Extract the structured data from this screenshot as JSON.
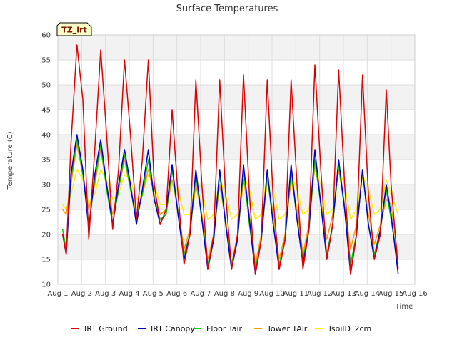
{
  "chart_data": {
    "type": "line",
    "title": "Surface Temperatures",
    "xlabel": "Time",
    "ylabel": "Temperature (C)",
    "annotation": "TZ_irt",
    "xlim": [
      1,
      16
    ],
    "ylim": [
      10,
      60
    ],
    "x_tick_labels": [
      "Aug 1",
      "Aug 2",
      "Aug 3",
      "Aug 4",
      "Aug 5",
      "Aug 6",
      "Aug 7",
      "Aug 8",
      "Aug 9",
      "Aug 10",
      "Aug 11",
      "Aug 12",
      "Aug 13",
      "Aug 14",
      "Aug 15",
      "Aug 16"
    ],
    "x_tick_values": [
      1,
      2,
      3,
      4,
      5,
      6,
      7,
      8,
      9,
      10,
      11,
      12,
      13,
      14,
      15,
      16
    ],
    "y_ticks": [
      10,
      15,
      20,
      25,
      30,
      35,
      40,
      45,
      50,
      55,
      60
    ],
    "grid": true,
    "legend_position": "bottom",
    "band_color": "#f2f2f2",
    "series": [
      {
        "name": "IRT Ground",
        "color": "#e00000",
        "x": [
          1.2,
          1.35,
          1.55,
          1.8,
          2.05,
          2.3,
          2.55,
          2.8,
          3.05,
          3.3,
          3.55,
          3.8,
          4.05,
          4.3,
          4.55,
          4.8,
          5.05,
          5.3,
          5.55,
          5.8,
          6.05,
          6.3,
          6.55,
          6.8,
          7.05,
          7.3,
          7.55,
          7.8,
          8.05,
          8.3,
          8.55,
          8.8,
          9.05,
          9.3,
          9.55,
          9.8,
          10.05,
          10.3,
          10.55,
          10.8,
          11.05,
          11.3,
          11.55,
          11.8,
          12.05,
          12.3,
          12.55,
          12.8,
          13.05,
          13.3,
          13.55,
          13.8,
          14.05,
          14.3,
          14.55,
          14.8,
          15.0,
          15.3
        ],
        "values": [
          20,
          16,
          38,
          58,
          47,
          19,
          37,
          57,
          40,
          21,
          33,
          55,
          40,
          23,
          35,
          55,
          30,
          22,
          25,
          45,
          28,
          14,
          20,
          51,
          30,
          13,
          20,
          51,
          28,
          13,
          20,
          52,
          28,
          12,
          19,
          51,
          27,
          13,
          19,
          51,
          30,
          13,
          21,
          54,
          33,
          15,
          22,
          53,
          30,
          12,
          20,
          52,
          28,
          15,
          20,
          49,
          30,
          13
        ]
      },
      {
        "name": "IRT Canopy",
        "color": "#0000cc",
        "x": [
          1.2,
          1.35,
          1.55,
          1.8,
          2.05,
          2.3,
          2.55,
          2.8,
          3.05,
          3.3,
          3.55,
          3.8,
          4.05,
          4.3,
          4.55,
          4.8,
          5.05,
          5.3,
          5.55,
          5.8,
          6.05,
          6.3,
          6.55,
          6.8,
          7.05,
          7.3,
          7.55,
          7.8,
          8.05,
          8.3,
          8.55,
          8.8,
          9.05,
          9.3,
          9.55,
          9.8,
          10.05,
          10.3,
          10.55,
          10.8,
          11.05,
          11.3,
          11.55,
          11.8,
          12.05,
          12.3,
          12.55,
          12.8,
          13.05,
          13.3,
          13.55,
          13.8,
          14.05,
          14.3,
          14.55,
          14.8,
          15.0,
          15.3
        ],
        "values": [
          20,
          16,
          32,
          40,
          33,
          21,
          32,
          39,
          30,
          22,
          30,
          37,
          30,
          22,
          29,
          37,
          27,
          22,
          25,
          34,
          24,
          15,
          20,
          33,
          23,
          13,
          19,
          33,
          22,
          13,
          19,
          34,
          23,
          12,
          19,
          33,
          22,
          13,
          19,
          34,
          23,
          14,
          21,
          37,
          26,
          15,
          22,
          35,
          25,
          12,
          20,
          33,
          22,
          15,
          21,
          30,
          24,
          12
        ]
      },
      {
        "name": "Floor Tair",
        "color": "#00cc00",
        "x": [
          1.2,
          1.35,
          1.55,
          1.8,
          2.05,
          2.3,
          2.55,
          2.8,
          3.05,
          3.3,
          3.55,
          3.8,
          4.05,
          4.3,
          4.55,
          4.8,
          5.05,
          5.3,
          5.55,
          5.8,
          6.05,
          6.3,
          6.55,
          6.8,
          7.05,
          7.3,
          7.55,
          7.8,
          8.05,
          8.3,
          8.55,
          8.8,
          9.05,
          9.3,
          9.55,
          9.8,
          10.05,
          10.3,
          10.55,
          10.8,
          11.05,
          11.3,
          11.55,
          11.8,
          12.05,
          12.3,
          12.55,
          12.8,
          13.05,
          13.3,
          13.55,
          13.8,
          14.05,
          14.3,
          14.55,
          14.8,
          15.0,
          15.3
        ],
        "values": [
          21,
          17,
          31,
          39,
          32,
          22,
          31,
          38,
          29,
          22,
          29,
          36,
          29,
          23,
          28,
          35,
          27,
          23,
          24,
          33,
          24,
          16,
          20,
          32,
          23,
          14,
          19,
          32,
          22,
          14,
          19,
          33,
          22,
          13,
          19,
          32,
          22,
          14,
          19,
          33,
          23,
          15,
          21,
          35,
          26,
          16,
          22,
          34,
          25,
          14,
          20,
          33,
          22,
          16,
          21,
          29,
          23,
          14
        ]
      },
      {
        "name": "Tower TAir",
        "color": "#ff9900",
        "x": [
          1.2,
          1.35,
          1.55,
          1.8,
          2.05,
          2.3,
          2.55,
          2.8,
          3.05,
          3.3,
          3.55,
          3.8,
          4.05,
          4.3,
          4.55,
          4.8,
          5.05,
          5.3,
          5.55,
          5.8,
          6.05,
          6.3,
          6.55,
          6.8,
          7.05,
          7.3,
          7.55,
          7.8,
          8.05,
          8.3,
          8.55,
          8.8,
          9.05,
          9.3,
          9.55,
          9.8,
          10.05,
          10.3,
          10.55,
          10.8,
          11.05,
          11.3,
          11.55,
          11.8,
          12.05,
          12.3,
          12.55,
          12.8,
          13.05,
          13.3,
          13.55,
          13.8,
          14.05,
          14.3,
          14.55,
          14.8,
          15.0,
          15.3
        ],
        "values": [
          25,
          24,
          30,
          38,
          32,
          25,
          30,
          37,
          30,
          24,
          29,
          35,
          29,
          24,
          28,
          33,
          28,
          24,
          25,
          31,
          25,
          17,
          21,
          30,
          24,
          15,
          20,
          30,
          23,
          14,
          20,
          31,
          24,
          14,
          20,
          31,
          24,
          15,
          20,
          31,
          25,
          16,
          22,
          34,
          27,
          19,
          24,
          33,
          26,
          17,
          22,
          32,
          24,
          18,
          22,
          27,
          26,
          15
        ]
      },
      {
        "name": "TsoilD_2cm",
        "color": "#ffee00",
        "x": [
          1.2,
          1.35,
          1.55,
          1.8,
          2.05,
          2.3,
          2.55,
          2.8,
          3.05,
          3.3,
          3.55,
          3.8,
          4.05,
          4.3,
          4.55,
          4.8,
          5.05,
          5.3,
          5.55,
          5.8,
          6.05,
          6.3,
          6.55,
          6.8,
          7.05,
          7.3,
          7.55,
          7.8,
          8.05,
          8.3,
          8.55,
          8.8,
          9.05,
          9.3,
          9.55,
          9.8,
          10.05,
          10.3,
          10.55,
          10.8,
          11.05,
          11.3,
          11.55,
          11.8,
          12.05,
          12.3,
          12.55,
          12.8,
          13.05,
          13.3,
          13.55,
          13.8,
          14.05,
          14.3,
          14.55,
          14.8,
          15.0,
          15.3
        ],
        "values": [
          26,
          25,
          28,
          33,
          31,
          26,
          28,
          33,
          31,
          27,
          28,
          32,
          31,
          27,
          28,
          32,
          30,
          26,
          26,
          30,
          29,
          24,
          24,
          31,
          29,
          23,
          24,
          31,
          28,
          23,
          24,
          32,
          29,
          23,
          24,
          32,
          29,
          23,
          24,
          32,
          29,
          24,
          25,
          33,
          30,
          24,
          25,
          33,
          30,
          23,
          25,
          32,
          29,
          24,
          25,
          31,
          28,
          24
        ]
      }
    ]
  }
}
